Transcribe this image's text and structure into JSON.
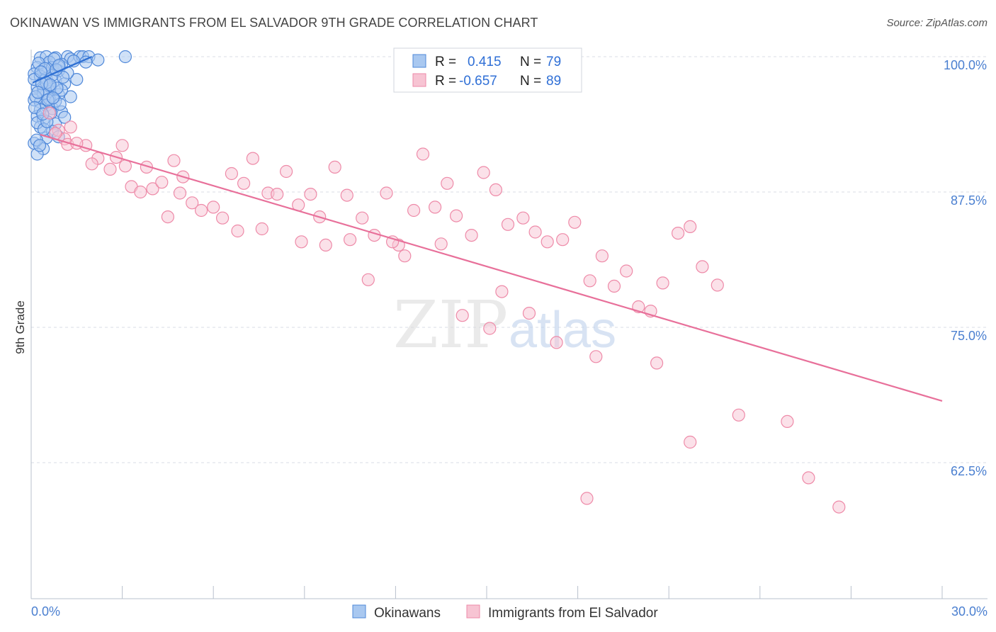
{
  "title": "OKINAWAN VS IMMIGRANTS FROM EL SALVADOR 9TH GRADE CORRELATION CHART",
  "source": "Source: ZipAtlas.com",
  "watermark": {
    "zip": "ZIP",
    "atlas": "atlas"
  },
  "colors": {
    "blue_fill": "#a9c8f0",
    "blue_stroke": "#4f88d9",
    "blue_line": "#2d6fd3",
    "pink_fill": "#f7c4d3",
    "pink_stroke": "#ee8aa8",
    "pink_line": "#e8709a",
    "grid": "#d8dde6",
    "tick_text": "#4a7fd0"
  },
  "legend": {
    "rows": [
      {
        "r_label": "R =",
        "r_value": "0.415",
        "n_label": "N =",
        "n_value": "79",
        "series": "blue"
      },
      {
        "r_label": "R =",
        "r_value": "-0.657",
        "n_label": "N =",
        "n_value": "89",
        "series": "pink"
      }
    ]
  },
  "chart_data": {
    "type": "scatter",
    "xlabel": "",
    "ylabel": "9th Grade",
    "xlim": [
      0,
      30
    ],
    "ylim": [
      50,
      100
    ],
    "x_tick_labels": [
      {
        "value": 0,
        "label": "0.0%"
      },
      {
        "value": 30,
        "label": "30.0%"
      }
    ],
    "y_tick_labels": [
      {
        "value": 100,
        "label": "100.0%"
      },
      {
        "value": 87.5,
        "label": "87.5%"
      },
      {
        "value": 75,
        "label": "75.0%"
      },
      {
        "value": 62.5,
        "label": "62.5%"
      }
    ],
    "x_minor_ticks": [
      0,
      3,
      6,
      9,
      12,
      15,
      18,
      21,
      24,
      27,
      30
    ],
    "series": [
      {
        "name": "Okinawans",
        "color": "blue",
        "trend": {
          "x": [
            0.05,
            2.0
          ],
          "y": [
            97.6,
            100.0
          ]
        },
        "points": [
          [
            0.3,
            99.9
          ],
          [
            0.5,
            100
          ],
          [
            0.8,
            99.9
          ],
          [
            1.2,
            100
          ],
          [
            1.3,
            99.8
          ],
          [
            1.6,
            100
          ],
          [
            1.7,
            100
          ],
          [
            1.9,
            100
          ],
          [
            0.6,
            99.5
          ],
          [
            1.0,
            99.3
          ],
          [
            0.2,
            99.0
          ],
          [
            0.4,
            98.8
          ],
          [
            0.7,
            99.0
          ],
          [
            0.9,
            98.7
          ],
          [
            1.4,
            99.6
          ],
          [
            1.8,
            99.5
          ],
          [
            2.2,
            99.7
          ],
          [
            3.1,
            100
          ],
          [
            0.1,
            98.4
          ],
          [
            0.3,
            98.2
          ],
          [
            0.5,
            98.0
          ],
          [
            0.8,
            97.8
          ],
          [
            1.1,
            97.5
          ],
          [
            0.2,
            97.2
          ],
          [
            0.4,
            97.0
          ],
          [
            0.6,
            96.8
          ],
          [
            0.9,
            96.5
          ],
          [
            1.3,
            96.3
          ],
          [
            0.1,
            96.0
          ],
          [
            0.3,
            95.8
          ],
          [
            0.5,
            95.5
          ],
          [
            0.7,
            95.2
          ],
          [
            1.0,
            94.9
          ],
          [
            0.2,
            94.5
          ],
          [
            0.4,
            94.2
          ],
          [
            1.5,
            97.9
          ],
          [
            0.6,
            96.1
          ],
          [
            0.3,
            93.5
          ],
          [
            0.5,
            92.5
          ],
          [
            0.1,
            92.0
          ],
          [
            0.4,
            91.5
          ],
          [
            0.2,
            91.0
          ],
          [
            0.8,
            93.8
          ],
          [
            1.0,
            96.9
          ],
          [
            0.7,
            98.3
          ],
          [
            0.9,
            99.1
          ],
          [
            1.2,
            98.5
          ],
          [
            0.6,
            97.3
          ],
          [
            0.4,
            96.6
          ],
          [
            0.3,
            95.1
          ],
          [
            0.2,
            93.9
          ],
          [
            0.5,
            97.6
          ],
          [
            0.8,
            95.9
          ],
          [
            1.1,
            94.4
          ],
          [
            0.7,
            93.1
          ],
          [
            0.9,
            92.6
          ],
          [
            0.1,
            97.9
          ],
          [
            0.15,
            96.3
          ],
          [
            0.25,
            99.4
          ],
          [
            0.35,
            97.5
          ],
          [
            0.45,
            98.9
          ],
          [
            0.55,
            96.0
          ],
          [
            0.65,
            94.8
          ],
          [
            0.75,
            99.8
          ],
          [
            0.85,
            97.1
          ],
          [
            0.95,
            95.6
          ],
          [
            1.05,
            98.1
          ],
          [
            0.12,
            95.3
          ],
          [
            0.22,
            96.7
          ],
          [
            0.32,
            98.6
          ],
          [
            0.42,
            93.3
          ],
          [
            0.52,
            94.0
          ],
          [
            0.62,
            97.4
          ],
          [
            0.72,
            96.2
          ],
          [
            0.82,
            98.8
          ],
          [
            0.92,
            99.2
          ],
          [
            0.18,
            92.3
          ],
          [
            0.28,
            91.8
          ],
          [
            0.38,
            94.7
          ]
        ]
      },
      {
        "name": "Immigrants from El Salvador",
        "color": "pink",
        "trend": {
          "x": [
            0.3,
            30.0
          ],
          "y": [
            92.8,
            68.2
          ]
        },
        "points": [
          [
            0.6,
            94.8
          ],
          [
            0.9,
            93.2
          ],
          [
            1.1,
            92.4
          ],
          [
            1.2,
            91.9
          ],
          [
            1.8,
            91.8
          ],
          [
            2.2,
            90.6
          ],
          [
            2.6,
            89.6
          ],
          [
            2.8,
            90.7
          ],
          [
            3.1,
            89.9
          ],
          [
            3.3,
            88.0
          ],
          [
            3.6,
            87.5
          ],
          [
            3.8,
            89.8
          ],
          [
            4.0,
            87.8
          ],
          [
            4.3,
            88.4
          ],
          [
            4.7,
            90.4
          ],
          [
            4.9,
            87.4
          ],
          [
            5.3,
            86.5
          ],
          [
            5.6,
            85.8
          ],
          [
            6.0,
            86.1
          ],
          [
            6.3,
            85.1
          ],
          [
            6.6,
            89.2
          ],
          [
            7.0,
            88.3
          ],
          [
            7.3,
            90.6
          ],
          [
            7.8,
            87.4
          ],
          [
            8.1,
            87.3
          ],
          [
            8.4,
            89.4
          ],
          [
            8.8,
            86.3
          ],
          [
            9.2,
            87.3
          ],
          [
            9.5,
            85.2
          ],
          [
            10.0,
            89.8
          ],
          [
            10.4,
            87.2
          ],
          [
            10.9,
            85.1
          ],
          [
            11.3,
            83.5
          ],
          [
            11.7,
            87.4
          ],
          [
            12.1,
            82.6
          ],
          [
            12.6,
            85.8
          ],
          [
            12.9,
            91.0
          ],
          [
            13.3,
            86.1
          ],
          [
            13.7,
            88.3
          ],
          [
            14.0,
            85.3
          ],
          [
            14.5,
            83.5
          ],
          [
            14.9,
            89.3
          ],
          [
            15.3,
            87.7
          ],
          [
            15.7,
            84.5
          ],
          [
            16.2,
            85.1
          ],
          [
            16.6,
            83.8
          ],
          [
            17.0,
            82.9
          ],
          [
            17.5,
            83.1
          ],
          [
            17.9,
            84.7
          ],
          [
            18.4,
            79.3
          ],
          [
            18.8,
            81.6
          ],
          [
            19.2,
            78.8
          ],
          [
            19.6,
            80.2
          ],
          [
            20.0,
            76.9
          ],
          [
            20.4,
            76.5
          ],
          [
            20.8,
            79.1
          ],
          [
            21.3,
            83.7
          ],
          [
            21.7,
            84.3
          ],
          [
            22.1,
            80.6
          ],
          [
            3.0,
            91.8
          ],
          [
            4.5,
            85.2
          ],
          [
            6.8,
            83.9
          ],
          [
            7.6,
            84.1
          ],
          [
            8.9,
            82.9
          ],
          [
            9.7,
            82.6
          ],
          [
            10.5,
            83.1
          ],
          [
            11.1,
            79.4
          ],
          [
            11.9,
            82.9
          ],
          [
            12.3,
            81.6
          ],
          [
            13.5,
            82.7
          ],
          [
            14.2,
            76.1
          ],
          [
            15.1,
            74.9
          ],
          [
            15.5,
            78.3
          ],
          [
            16.4,
            76.3
          ],
          [
            17.3,
            73.6
          ],
          [
            18.6,
            72.3
          ],
          [
            20.6,
            71.7
          ],
          [
            21.7,
            64.4
          ],
          [
            24.9,
            66.3
          ],
          [
            25.6,
            61.1
          ],
          [
            18.3,
            59.2
          ],
          [
            26.6,
            58.4
          ],
          [
            23.3,
            66.9
          ],
          [
            5.0,
            88.9
          ],
          [
            2.0,
            90.1
          ],
          [
            1.5,
            92.0
          ],
          [
            0.8,
            92.9
          ],
          [
            1.3,
            93.5
          ],
          [
            22.6,
            78.9
          ]
        ]
      }
    ]
  },
  "bottom_legend": {
    "items": [
      {
        "label": "Okinawans",
        "color": "blue"
      },
      {
        "label": "Immigrants from El Salvador",
        "color": "pink"
      }
    ]
  }
}
